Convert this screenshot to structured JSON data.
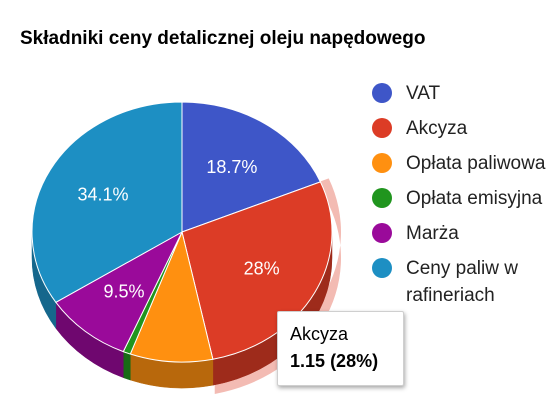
{
  "chart_data": {
    "type": "pie",
    "title": "Składniki ceny detalicznej oleju napędowego",
    "slices": [
      {
        "label": "VAT",
        "value": 18.7,
        "color": "#3e56c8"
      },
      {
        "label": "Akcyza",
        "value": 28.0,
        "color": "#dc3c26"
      },
      {
        "label": "Opłata paliwowa",
        "value": 8.9,
        "color": "#ff9010"
      },
      {
        "label": "Opłata emisyjna",
        "value": 0.8,
        "color": "#20951e"
      },
      {
        "label": "Marża",
        "value": 9.5,
        "color": "#9a0a9a"
      },
      {
        "label": "Ceny paliw w rafineriach",
        "value": 34.1,
        "color": "#1d8fc3"
      }
    ],
    "data_labels": [
      "18.7%",
      "28%",
      "",
      "",
      "9.5%",
      "34.1%"
    ],
    "legend_position": "right",
    "highlighted": "Akcyza"
  },
  "legend": [
    {
      "label": "VAT",
      "color": "#3e56c8"
    },
    {
      "label": "Akcyza",
      "color": "#dc3c26"
    },
    {
      "label": "Opłata paliwowa",
      "color": "#ff9010"
    },
    {
      "label": "Opłata emisyjna",
      "color": "#20951e"
    },
    {
      "label": "Marża",
      "color": "#9a0a9a"
    },
    {
      "label": "Ceny paliw w rafineriach",
      "color": "#1d8fc3"
    }
  ],
  "tooltip": {
    "label": "Akcyza",
    "value": "1.15",
    "percent": "(28%)"
  }
}
